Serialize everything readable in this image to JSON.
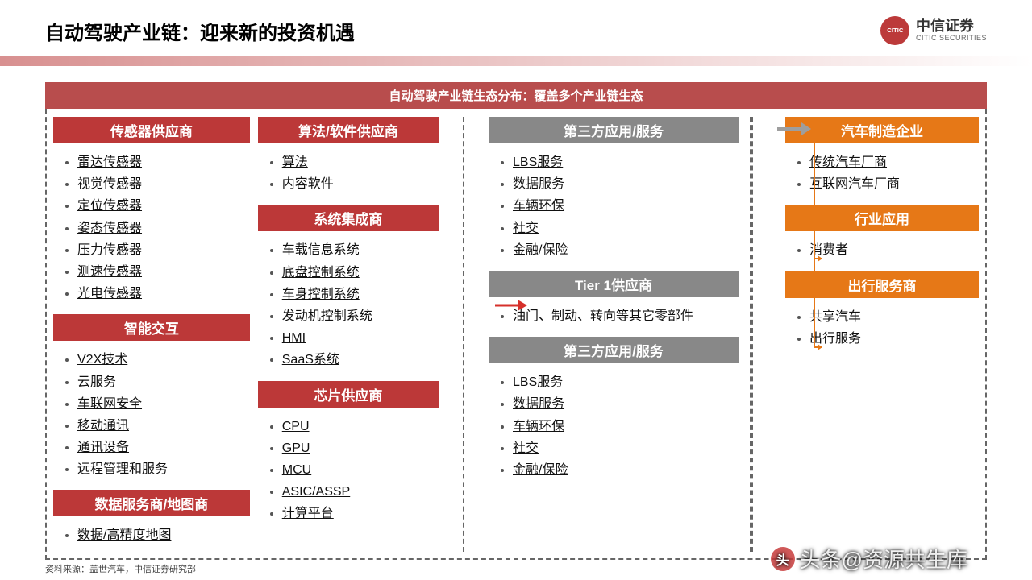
{
  "page": {
    "title": "自动驾驶产业链：迎来新的投资机遇",
    "banner": "自动驾驶产业链生态分布：覆盖多个产业链生态",
    "source": "资料来源：盖世汽车，中信证券研究部",
    "watermark": "头条@资源共生库"
  },
  "logo": {
    "cn": "中信证券",
    "en": "CITIC SECURITIES",
    "mark": "CITIC"
  },
  "colors": {
    "red": "#bc3838",
    "banner_red": "#b84d4d",
    "grey": "#888888",
    "orange": "#e67817",
    "dash": "#666666",
    "bg": "#ffffff",
    "text": "#111111"
  },
  "columns": {
    "c1": [
      {
        "head": "传感器供应商",
        "color": "red",
        "items": [
          "雷达传感器",
          "视觉传感器",
          "定位传感器",
          "姿态传感器",
          "压力传感器",
          "测速传感器",
          "光电传感器"
        ]
      },
      {
        "head": "智能交互",
        "color": "red",
        "items": [
          "V2X技术",
          "云服务",
          "车联网安全",
          "移动通讯",
          "通讯设备",
          "远程管理和服务"
        ]
      },
      {
        "head": "数据服务商/地图商",
        "color": "red",
        "items": [
          "数据/高精度地图"
        ]
      }
    ],
    "c2": [
      {
        "head": "算法/软件供应商",
        "color": "red",
        "items": [
          "算法",
          "内容软件"
        ]
      },
      {
        "head": "系统集成商",
        "color": "red",
        "items": [
          "车载信息系统",
          "底盘控制系统",
          "车身控制系统",
          "发动机控制系统",
          "HMI",
          "SaaS系统"
        ]
      },
      {
        "head": "芯片供应商",
        "color": "red",
        "items": [
          "CPU",
          "GPU",
          "MCU",
          "ASIC/ASSP",
          "计算平台"
        ]
      }
    ],
    "c3": [
      {
        "head": "第三方应用/服务",
        "color": "grey",
        "items": [
          "LBS服务",
          "数据服务",
          "车辆环保",
          "社交",
          "金融/保险"
        ]
      },
      {
        "head": "Tier 1供应商",
        "color": "grey",
        "items_plain": [
          "油门、制动、转向等其它零部件"
        ]
      },
      {
        "head": "第三方应用/服务",
        "color": "grey",
        "items": [
          "LBS服务",
          "数据服务",
          "车辆环保",
          "社交",
          "金融/保险"
        ]
      }
    ],
    "c4": [
      {
        "head": "汽车制造企业",
        "color": "orange",
        "items": [
          "传统汽车厂商",
          "互联网汽车厂商"
        ]
      },
      {
        "head": "行业应用",
        "color": "orange",
        "items_plain": [
          "消费者"
        ]
      },
      {
        "head": "出行服务商",
        "color": "orange",
        "items_plain": [
          "共享汽车",
          "出行服务"
        ]
      }
    ]
  }
}
